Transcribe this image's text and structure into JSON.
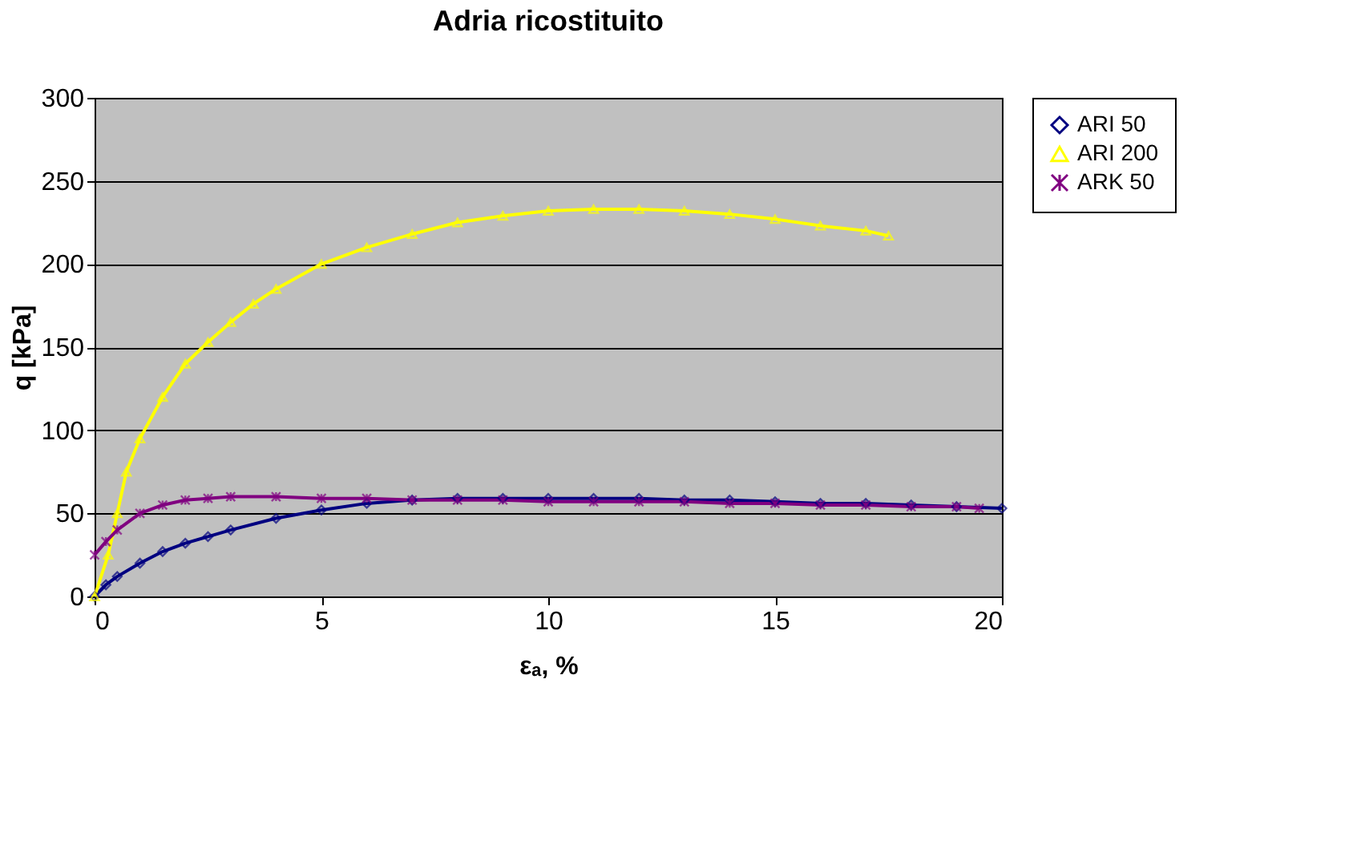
{
  "chart_data": {
    "type": "line",
    "title": "Adria ricostituito",
    "xlabel": "εₐ, %",
    "ylabel": "q  [kPa]",
    "xlim": [
      0,
      20
    ],
    "xticks": [
      0,
      5,
      10,
      15,
      20
    ],
    "ylim": [
      0,
      300
    ],
    "yticks": [
      0,
      50,
      100,
      150,
      200,
      250,
      300
    ],
    "grid": "y",
    "legend": "right",
    "series": [
      {
        "name": "ARI 50",
        "color": "#000080",
        "marker": "diamond",
        "x": [
          0,
          0.25,
          0.5,
          1,
          1.5,
          2,
          2.5,
          3,
          4,
          5,
          6,
          7,
          8,
          9,
          10,
          11,
          12,
          13,
          14,
          15,
          16,
          17,
          18,
          19,
          20
        ],
        "values": [
          0,
          7,
          12,
          20,
          27,
          32,
          36,
          40,
          47,
          52,
          56,
          58,
          59,
          59,
          59,
          59,
          59,
          58,
          58,
          57,
          56,
          56,
          55,
          54,
          53
        ]
      },
      {
        "name": "ARI 200",
        "color": "#ffff00",
        "marker": "triangle",
        "x": [
          0,
          0.3,
          0.5,
          0.7,
          1,
          1.5,
          2,
          2.5,
          3,
          3.5,
          4,
          5,
          6,
          7,
          8,
          9,
          10,
          11,
          12,
          13,
          14,
          15,
          16,
          17,
          17.5
        ],
        "values": [
          0,
          25,
          50,
          75,
          95,
          120,
          140,
          153,
          165,
          176,
          185,
          200,
          210,
          218,
          225,
          229,
          232,
          233,
          233,
          232,
          230,
          227,
          223,
          220,
          217
        ]
      },
      {
        "name": "ARK 50",
        "color": "#800080",
        "marker": "cross",
        "x": [
          0,
          0.25,
          0.5,
          1,
          1.5,
          2,
          2.5,
          3,
          4,
          5,
          6,
          7,
          8,
          9,
          10,
          11,
          12,
          13,
          14,
          15,
          16,
          17,
          18,
          19,
          19.5
        ],
        "values": [
          25,
          33,
          40,
          50,
          55,
          58,
          59,
          60,
          60,
          59,
          59,
          58,
          58,
          58,
          57,
          57,
          57,
          57,
          56,
          56,
          55,
          55,
          54,
          54,
          53
        ]
      }
    ]
  }
}
